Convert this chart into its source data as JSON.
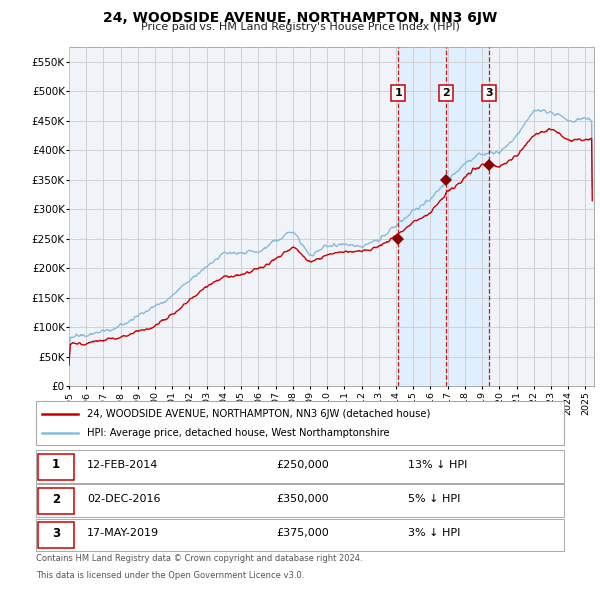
{
  "title": "24, WOODSIDE AVENUE, NORTHAMPTON, NN3 6JW",
  "subtitle": "Price paid vs. HM Land Registry's House Price Index (HPI)",
  "legend_line1": "24, WOODSIDE AVENUE, NORTHAMPTON, NN3 6JW (detached house)",
  "legend_line2": "HPI: Average price, detached house, West Northamptonshire",
  "footnote1": "Contains HM Land Registry data © Crown copyright and database right 2024.",
  "footnote2": "This data is licensed under the Open Government Licence v3.0.",
  "sale_color": "#cc0000",
  "hpi_color": "#88bbdd",
  "shade_color": "#ddeeff",
  "background_color": "#f0f4f8",
  "grid_color": "#cccccc",
  "marker_color": "#880000",
  "vline_color": "#cc0000",
  "transactions": [
    {
      "label": "1",
      "date": "12-FEB-2014",
      "price": 250000,
      "hpi_pct": "13%",
      "year": 2014.12
    },
    {
      "label": "2",
      "date": "02-DEC-2016",
      "price": 350000,
      "hpi_pct": "5%",
      "year": 2016.92
    },
    {
      "label": "3",
      "date": "17-MAY-2019",
      "price": 375000,
      "hpi_pct": "3%",
      "year": 2019.38
    }
  ],
  "ylim": [
    0,
    575000
  ],
  "xlim_start": 1995.0,
  "xlim_end": 2025.5,
  "yticks": [
    0,
    50000,
    100000,
    150000,
    200000,
    250000,
    300000,
    350000,
    400000,
    450000,
    500000,
    550000
  ],
  "xticks": [
    1995,
    1996,
    1997,
    1998,
    1999,
    2000,
    2001,
    2002,
    2003,
    2004,
    2005,
    2006,
    2007,
    2008,
    2009,
    2010,
    2011,
    2012,
    2013,
    2014,
    2015,
    2016,
    2017,
    2018,
    2019,
    2020,
    2021,
    2022,
    2023,
    2024,
    2025
  ],
  "hpi_anchors_years": [
    1995,
    1996,
    1997,
    1998,
    1999,
    2000,
    2001,
    2002,
    2003,
    2004,
    2005,
    2006,
    2007,
    2008,
    2009,
    2010,
    2011,
    2012,
    2013,
    2014,
    2015,
    2016,
    2017,
    2018,
    2019,
    2020,
    2021,
    2022,
    2023,
    2024,
    2025
  ],
  "hpi_anchors_vals": [
    83000,
    86000,
    93000,
    102000,
    115000,
    130000,
    150000,
    175000,
    200000,
    220000,
    222000,
    228000,
    250000,
    265000,
    228000,
    242000,
    243000,
    240000,
    248000,
    272000,
    300000,
    315000,
    348000,
    375000,
    390000,
    388000,
    420000,
    460000,
    462000,
    448000,
    452000
  ],
  "sale_anchors_years": [
    1995,
    1996,
    1997,
    1998,
    1999,
    2000,
    2001,
    2002,
    2003,
    2004,
    2005,
    2006,
    2007,
    2008,
    2009,
    2010,
    2011,
    2012,
    2013,
    2014,
    2015,
    2016,
    2017,
    2018,
    2019,
    2020,
    2021,
    2022,
    2023,
    2024,
    2025
  ],
  "sale_anchors_vals": [
    72000,
    72000,
    76000,
    81000,
    90000,
    100000,
    118000,
    140000,
    160000,
    178000,
    182000,
    190000,
    210000,
    228000,
    200000,
    215000,
    220000,
    220000,
    228000,
    248000,
    270000,
    285000,
    325000,
    350000,
    372000,
    372000,
    390000,
    425000,
    432000,
    415000,
    418000
  ]
}
